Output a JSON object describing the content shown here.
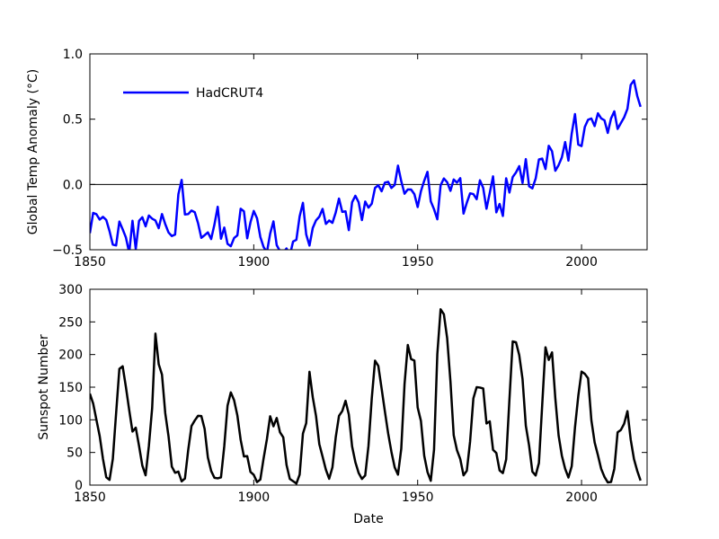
{
  "chart_data": [
    {
      "type": "line",
      "ylabel": "Global Temp Anomaly (°C)",
      "x": [
        1850,
        1851,
        1852,
        1853,
        1854,
        1855,
        1856,
        1857,
        1858,
        1859,
        1860,
        1861,
        1862,
        1863,
        1864,
        1865,
        1866,
        1867,
        1868,
        1869,
        1870,
        1871,
        1872,
        1873,
        1874,
        1875,
        1876,
        1877,
        1878,
        1879,
        1880,
        1881,
        1882,
        1883,
        1884,
        1885,
        1886,
        1887,
        1888,
        1889,
        1890,
        1891,
        1892,
        1893,
        1894,
        1895,
        1896,
        1897,
        1898,
        1899,
        1900,
        1901,
        1902,
        1903,
        1904,
        1905,
        1906,
        1907,
        1908,
        1909,
        1910,
        1911,
        1912,
        1913,
        1914,
        1915,
        1916,
        1917,
        1918,
        1919,
        1920,
        1921,
        1922,
        1923,
        1924,
        1925,
        1926,
        1927,
        1928,
        1929,
        1930,
        1931,
        1932,
        1933,
        1934,
        1935,
        1936,
        1937,
        1938,
        1939,
        1940,
        1941,
        1942,
        1943,
        1944,
        1945,
        1946,
        1947,
        1948,
        1949,
        1950,
        1951,
        1952,
        1953,
        1954,
        1955,
        1956,
        1957,
        1958,
        1959,
        1960,
        1961,
        1962,
        1963,
        1964,
        1965,
        1966,
        1967,
        1968,
        1969,
        1970,
        1971,
        1972,
        1973,
        1974,
        1975,
        1976,
        1977,
        1978,
        1979,
        1980,
        1981,
        1982,
        1983,
        1984,
        1985,
        1986,
        1987,
        1988,
        1989,
        1990,
        1991,
        1992,
        1993,
        1994,
        1995,
        1996,
        1997,
        1998,
        1999,
        2000,
        2001,
        2002,
        2003,
        2004,
        2005,
        2006,
        2007,
        2008,
        2009,
        2010,
        2011,
        2012,
        2013,
        2014,
        2015,
        2016,
        2017,
        2018
      ],
      "series": [
        {
          "name": "HadCRUT4",
          "color": "#0000ff",
          "values": [
            -0.373,
            -0.218,
            -0.228,
            -0.269,
            -0.248,
            -0.272,
            -0.358,
            -0.461,
            -0.467,
            -0.284,
            -0.343,
            -0.407,
            -0.524,
            -0.278,
            -0.494,
            -0.279,
            -0.251,
            -0.321,
            -0.238,
            -0.262,
            -0.276,
            -0.335,
            -0.227,
            -0.304,
            -0.368,
            -0.395,
            -0.384,
            -0.075,
            0.035,
            -0.23,
            -0.227,
            -0.2,
            -0.213,
            -0.296,
            -0.409,
            -0.389,
            -0.367,
            -0.418,
            -0.307,
            -0.171,
            -0.416,
            -0.33,
            -0.455,
            -0.473,
            -0.41,
            -0.39,
            -0.186,
            -0.206,
            -0.412,
            -0.289,
            -0.203,
            -0.259,
            -0.402,
            -0.479,
            -0.52,
            -0.377,
            -0.283,
            -0.465,
            -0.511,
            -0.522,
            -0.49,
            -0.544,
            -0.437,
            -0.424,
            -0.244,
            -0.141,
            -0.383,
            -0.468,
            -0.333,
            -0.275,
            -0.247,
            -0.187,
            -0.302,
            -0.276,
            -0.294,
            -0.215,
            -0.108,
            -0.21,
            -0.206,
            -0.35,
            -0.137,
            -0.087,
            -0.137,
            -0.273,
            -0.131,
            -0.178,
            -0.147,
            -0.026,
            -0.006,
            -0.052,
            0.014,
            0.02,
            -0.027,
            -0.004,
            0.144,
            0.025,
            -0.071,
            -0.038,
            -0.039,
            -0.074,
            -0.173,
            -0.052,
            0.028,
            0.097,
            -0.129,
            -0.19,
            -0.267,
            -0.007,
            0.046,
            0.017,
            -0.049,
            0.038,
            0.014,
            0.048,
            -0.223,
            -0.14,
            -0.068,
            -0.074,
            -0.113,
            0.032,
            -0.027,
            -0.186,
            -0.065,
            0.062,
            -0.214,
            -0.149,
            -0.241,
            0.047,
            -0.062,
            0.057,
            0.092,
            0.14,
            0.011,
            0.194,
            -0.014,
            -0.03,
            0.045,
            0.192,
            0.198,
            0.118,
            0.296,
            0.254,
            0.105,
            0.148,
            0.208,
            0.325,
            0.183,
            0.39,
            0.539,
            0.306,
            0.294,
            0.441,
            0.496,
            0.505,
            0.447,
            0.545,
            0.506,
            0.491,
            0.395,
            0.506,
            0.56,
            0.425,
            0.47,
            0.514,
            0.579,
            0.763,
            0.797,
            0.677,
            0.595
          ]
        }
      ],
      "xlim": [
        1850,
        2020
      ],
      "xticks": [
        1850,
        1900,
        1950,
        2000
      ],
      "ylim": [
        -0.5,
        1.0
      ],
      "yticks": [
        {
          "value": -0.5,
          "label": "−0.5"
        },
        {
          "value": 0.0,
          "label": "0.0"
        },
        0.5,
        {
          "value": 1.0,
          "label": "1.0"
        }
      ],
      "reference_line": 0,
      "legend": "upper left"
    },
    {
      "type": "line",
      "ylabel": "Sunspot Number",
      "xlabel": "Date",
      "x": [
        1850,
        1851,
        1852,
        1853,
        1854,
        1855,
        1856,
        1857,
        1858,
        1859,
        1860,
        1861,
        1862,
        1863,
        1864,
        1865,
        1866,
        1867,
        1868,
        1869,
        1870,
        1871,
        1872,
        1873,
        1874,
        1875,
        1876,
        1877,
        1878,
        1879,
        1880,
        1881,
        1882,
        1883,
        1884,
        1885,
        1886,
        1887,
        1888,
        1889,
        1890,
        1891,
        1892,
        1893,
        1894,
        1895,
        1896,
        1897,
        1898,
        1899,
        1900,
        1901,
        1902,
        1903,
        1904,
        1905,
        1906,
        1907,
        1908,
        1909,
        1910,
        1911,
        1912,
        1913,
        1914,
        1915,
        1916,
        1917,
        1918,
        1919,
        1920,
        1921,
        1922,
        1923,
        1924,
        1925,
        1926,
        1927,
        1928,
        1929,
        1930,
        1931,
        1932,
        1933,
        1934,
        1935,
        1936,
        1937,
        1938,
        1939,
        1940,
        1941,
        1942,
        1943,
        1944,
        1945,
        1946,
        1947,
        1948,
        1949,
        1950,
        1951,
        1952,
        1953,
        1954,
        1955,
        1956,
        1957,
        1958,
        1959,
        1960,
        1961,
        1962,
        1963,
        1964,
        1965,
        1966,
        1967,
        1968,
        1969,
        1970,
        1971,
        1972,
        1973,
        1974,
        1975,
        1976,
        1977,
        1978,
        1979,
        1980,
        1981,
        1982,
        1983,
        1984,
        1985,
        1986,
        1987,
        1988,
        1989,
        1990,
        1991,
        1992,
        1993,
        1994,
        1995,
        1996,
        1997,
        1998,
        1999,
        2000,
        2001,
        2002,
        2003,
        2004,
        2005,
        2006,
        2007,
        2008,
        2009,
        2010,
        2011,
        2012,
        2013,
        2014,
        2015,
        2016,
        2017,
        2018
      ],
      "series": [
        {
          "color": "#000000",
          "values": [
            140,
            125,
            100,
            75,
            40,
            12,
            8,
            40,
            110,
            178,
            182,
            150,
            115,
            82,
            88,
            60,
            30,
            15,
            60,
            118,
            232,
            185.3,
            169.2,
            110.1,
            74.5,
            28.3,
            18.9,
            20.7,
            5.7,
            10.0,
            53.7,
            90.5,
            99.0,
            106.1,
            105.8,
            86.3,
            42.4,
            21.8,
            11.2,
            10.4,
            11.8,
            59.5,
            121.7,
            142.0,
            130.0,
            106.6,
            69.4,
            43.8,
            44.4,
            20.2,
            15.7,
            4.6,
            8.5,
            40.8,
            70.1,
            105.5,
            90.1,
            102.8,
            80.9,
            73.2,
            30.9,
            9.5,
            6.0,
            2.4,
            16.1,
            79.0,
            95.0,
            173.6,
            134.6,
            105.7,
            62.7,
            43.5,
            23.7,
            9.7,
            27.2,
            73.0,
            106.1,
            113.4,
            129.2,
            108.2,
            59.4,
            35.1,
            18.6,
            9.5,
            14.8,
            60.2,
            132.8,
            190.6,
            182.6,
            148.0,
            113.0,
            79.2,
            50.8,
            27.1,
            16.1,
            55.7,
            154.7,
            214.7,
            193.0,
            190.7,
            118.9,
            98.3,
            45.0,
            20.1,
            6.6,
            54.2,
            200.7,
            269.3,
            261.7,
            225.1,
            159.0,
            76.4,
            53.4,
            39.9,
            15.0,
            22.0,
            66.8,
            132.9,
            150.0,
            149.4,
            148.0,
            94.4,
            97.6,
            54.1,
            49.2,
            22.5,
            18.4,
            39.3,
            131.0,
            220.1,
            218.9,
            198.9,
            162.4,
            91.0,
            60.5,
            20.6,
            14.8,
            33.9,
            123.0,
            211.1,
            191.8,
            203.3,
            133.0,
            76.1,
            44.9,
            25.1,
            11.6,
            28.9,
            88.3,
            136.3,
            173.9,
            170.4,
            163.6,
            99.3,
            65.3,
            45.8,
            24.7,
            12.6,
            4.2,
            4.8,
            24.9,
            80.8,
            84.5,
            94.0,
            113.3,
            69.8,
            39.8,
            21.7,
            7.0
          ]
        }
      ],
      "xlim": [
        1850,
        2020
      ],
      "xticks": [
        1850,
        1900,
        1950,
        2000
      ],
      "ylim": [
        0,
        300
      ],
      "yticks": [
        0,
        50,
        100,
        150,
        200,
        250,
        300
      ]
    }
  ]
}
